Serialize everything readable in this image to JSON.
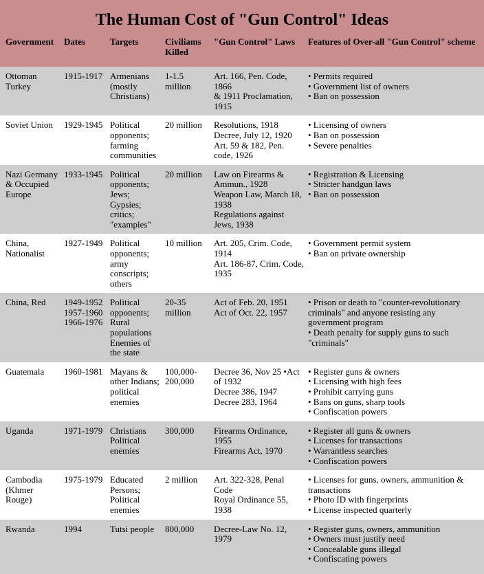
{
  "title": "The Human Cost of \"Gun Control\" Ideas",
  "columns": [
    "Government",
    "Dates",
    "Targets",
    "Civiliams Killed",
    "\"Gun Control\" Laws",
    "Features of Over-all \"Gun Control\" scheme"
  ],
  "rows": [
    {
      "government": "Ottoman Turkey",
      "dates": "1915-1917",
      "targets": "Armenians (mostly Christians)",
      "killed": "1-1.5 million",
      "laws": [
        "Art. 166, Pen. Code, 1866",
        "& 1911 Proclamation, 1915"
      ],
      "features": [
        "• Permits required",
        "• Government list of owners",
        "• Ban on possession"
      ]
    },
    {
      "government": "Soviet Union",
      "dates": "1929-1945",
      "targets": "Political opponents; farming communities",
      "killed": "20 million",
      "laws": [
        "Resolutions, 1918",
        "Decree, July 12, 1920",
        "Art. 59 & 182, Pen. code, 1926"
      ],
      "features": [
        "• Licensing of owners",
        "• Ban on possession",
        "• Severe penalties"
      ]
    },
    {
      "government": "Nazi Germany & Occupied Europe",
      "dates": "1933-1945",
      "targets": "Political opponents; Jews; Gypsies; critics; \"examples\"",
      "killed": "20 million",
      "laws": [
        "Law on Firearms & Ammun., 1928",
        "Weapon Law, March 18, 1938",
        "Regulations against Jews, 1938"
      ],
      "features": [
        "• Registration & Licensing",
        "• Stricter handgun laws",
        "• Ban on possession"
      ]
    },
    {
      "government": "China, Nationalist",
      "dates": "1927-1949",
      "targets": "Political opponents; army conscripts; others",
      "killed": "10 million",
      "laws": [
        "Art. 205, Crim. Code, 1914",
        "Art. 186-87, Crim. Code, 1935"
      ],
      "features": [
        "• Government permit system",
        "• Ban on private ownership"
      ]
    },
    {
      "government": "China, Red",
      "dates": "1949-1952 1957-1960 1966-1976",
      "targets": "Political opponents; Rural populations Enemies of the state",
      "killed": "20-35 million",
      "laws": [
        "Act of Feb. 20, 1951",
        "Act of Oct. 22, 1957"
      ],
      "features": [
        "• Prison or death to \"counter-revolutionary criminals\" and anyone resisting any government program",
        "• Death penalty for supply guns to such \"criminals\""
      ]
    },
    {
      "government": "Guatemala",
      "dates": "1960-1981",
      "targets": "Mayans & other Indians; political enemies",
      "killed": "100,000-200,000",
      "laws": [
        "Decree 36, Nov 25 •Act of 1932",
        "Decree 386, 1947",
        "Decree 283, 1964"
      ],
      "features": [
        "• Register guns & owners",
        "• Licensing with high fees",
        "• Prohibit carrying guns",
        "• Bans on guns, sharp tools",
        "• Confiscation powers"
      ]
    },
    {
      "government": "Uganda",
      "dates": "1971-1979",
      "targets": "Christians Political enemies",
      "killed": "300,000",
      "laws": [
        "Firearms Ordinance, 1955",
        "Firearms Act, 1970"
      ],
      "features": [
        "• Register all guns & owners",
        "• Licenses for transactions",
        "• Warrantless searches",
        "• Confiscation powers"
      ]
    },
    {
      "government": "Cambodia (Khmer Rouge)",
      "dates": "1975-1979",
      "targets": "Educated Persons; Political enemies",
      "killed": "2 million",
      "laws": [
        "Art. 322-328, Penal Code",
        "Royal Ordinance 55, 1938"
      ],
      "features": [
        "• Licenses for guns, owners, ammunition & transactions",
        "• Photo ID with fingerprints",
        "• License inspected quarterly"
      ]
    },
    {
      "government": "Rwanda",
      "dates": "1994",
      "targets": "Tutsi people",
      "killed": "800,000",
      "laws": [
        "Decree-Law No. 12, 1979"
      ],
      "features": [
        "• Register guns, owners, ammunition",
        "• Owners must justify need",
        "• Concealable guns illegal",
        "• Confiscating powers"
      ]
    }
  ],
  "colors": {
    "header_bg": "#c98d90",
    "row_alt_bg": "#cdcdcd",
    "row_bg": "#ffffff",
    "text": "#000000"
  }
}
